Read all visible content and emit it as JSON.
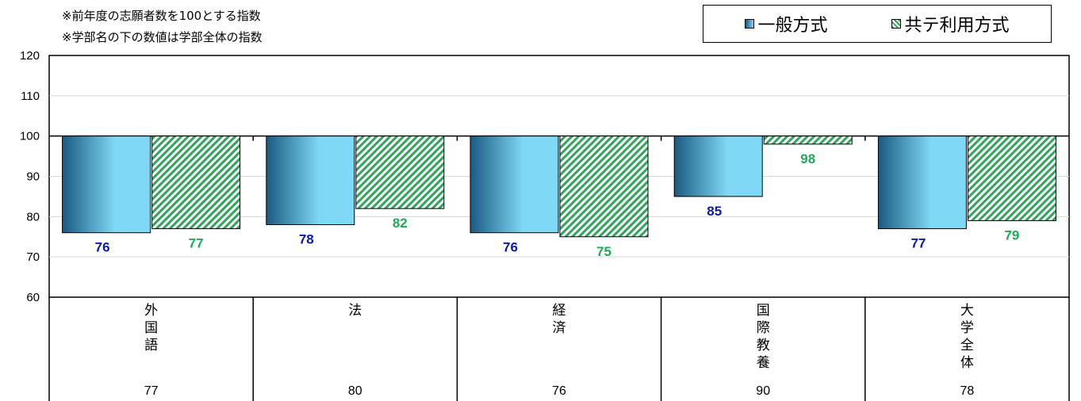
{
  "notes": [
    "※前年度の志願者数を100とする指数",
    "※学部名の下の数値は学部全体の指数"
  ],
  "colors": {
    "general_label": "#0a1aa8",
    "kyote_label": "#22a85a",
    "kyote_fill": "#2ea55a",
    "general_dark": "#1a5a82",
    "general_light": "#7fd8f5"
  },
  "chart_data": {
    "type": "bar",
    "categories": [
      "外国語",
      "法",
      "経済",
      "国際教養",
      "大学全体"
    ],
    "series": [
      {
        "name": "一般方式",
        "values": [
          76,
          78,
          76,
          85,
          77
        ]
      },
      {
        "name": "共テ利用方式",
        "values": [
          77,
          82,
          75,
          98,
          79
        ]
      }
    ],
    "baseline": 100,
    "ylim": [
      60,
      120
    ],
    "yticks": [
      60,
      70,
      80,
      90,
      100,
      110,
      120
    ],
    "faculty_index": [
      "77",
      "80",
      "76",
      "90",
      "78"
    ],
    "legend_position": "top-right",
    "grid": true
  }
}
